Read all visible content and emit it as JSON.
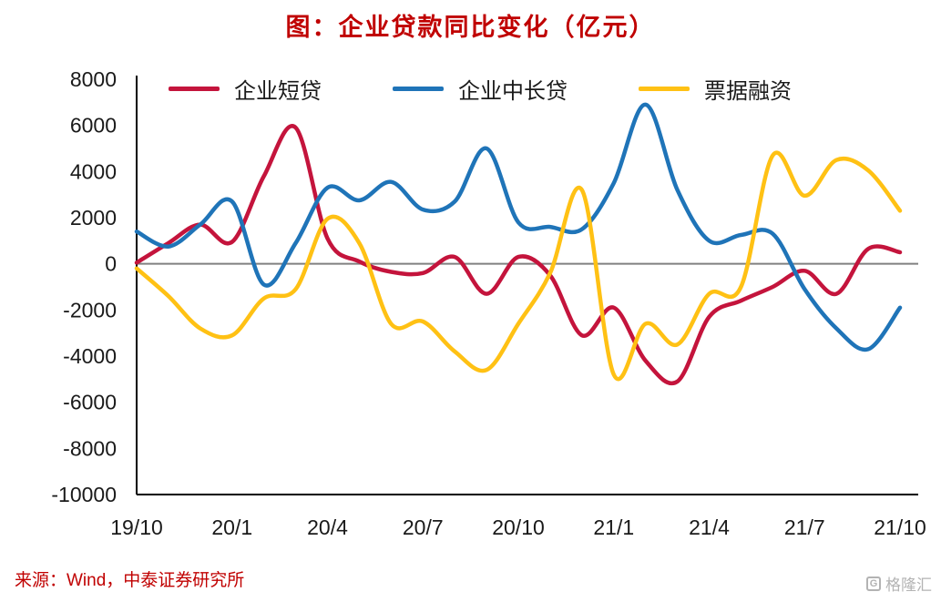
{
  "title": "图：企业贷款同比变化（亿元）",
  "source": "来源：Wind，中泰证券研究所",
  "watermark": "格隆汇",
  "chart_data": {
    "type": "line",
    "title": "图：企业贷款同比变化（亿元）",
    "x": [
      "19/10",
      "19/11",
      "19/12",
      "20/1",
      "20/2",
      "20/3",
      "20/4",
      "20/5",
      "20/6",
      "20/7",
      "20/8",
      "20/9",
      "20/10",
      "20/11",
      "20/12",
      "21/1",
      "21/2",
      "21/3",
      "21/4",
      "21/5",
      "21/6",
      "21/7",
      "21/8",
      "21/9",
      "21/10"
    ],
    "x_tick_labels": [
      "19/10",
      "20/1",
      "20/4",
      "20/7",
      "20/10",
      "21/1",
      "21/4",
      "21/7",
      "21/10"
    ],
    "x_tick_indices": [
      0,
      3,
      6,
      9,
      12,
      15,
      18,
      21,
      24
    ],
    "yticks": [
      8000,
      6000,
      4000,
      2000,
      0,
      -2000,
      -4000,
      -6000,
      -8000,
      -10000
    ],
    "ylim": [
      -10000,
      8000
    ],
    "grid": "off",
    "legend_position": "top",
    "zero_line_color": "#808080",
    "axis_color": "#000000",
    "series": [
      {
        "name": "企业短贷",
        "color": "#c4143c",
        "values": [
          50,
          900,
          1700,
          950,
          3800,
          5900,
          1100,
          100,
          -350,
          -400,
          300,
          -1300,
          300,
          -500,
          -3100,
          -1900,
          -4200,
          -5100,
          -2300,
          -1600,
          -1000,
          -300,
          -1300,
          650,
          500
        ]
      },
      {
        "name": "企业中长贷",
        "color": "#1f74b8",
        "values": [
          1400,
          750,
          1700,
          2700,
          -900,
          900,
          3300,
          2750,
          3550,
          2350,
          2700,
          5000,
          1800,
          1600,
          1500,
          3500,
          6900,
          3200,
          1000,
          1250,
          1300,
          -1100,
          -2800,
          -3700,
          -1900
        ]
      },
      {
        "name": "票据融资",
        "color": "#ffc114",
        "values": [
          -200,
          -1400,
          -2800,
          -3100,
          -1500,
          -1100,
          1950,
          900,
          -2600,
          -2500,
          -3800,
          -4600,
          -2600,
          -400,
          3200,
          -4800,
          -2600,
          -3500,
          -1300,
          -1000,
          4700,
          2950,
          4500,
          4050,
          2300
        ]
      }
    ]
  }
}
